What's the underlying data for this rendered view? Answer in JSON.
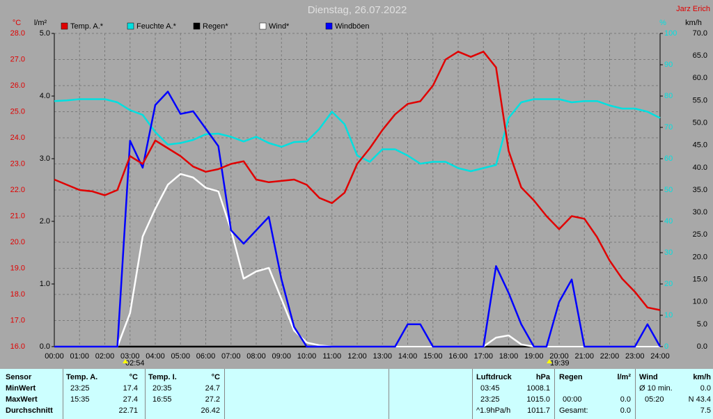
{
  "chart_data": {
    "type": "line",
    "title": "Dienstag, 26.07.2022",
    "author": "Jarz Erich",
    "ylabel": "°C",
    "y3label": "l/m²",
    "y2label": "%",
    "y4label": "km/h",
    "x": [
      0,
      0.5,
      1,
      1.5,
      2,
      2.5,
      3,
      3.5,
      4,
      4.5,
      5,
      5.5,
      6,
      6.5,
      7,
      7.5,
      8,
      8.5,
      9,
      9.5,
      10,
      10.5,
      11,
      11.5,
      12,
      12.5,
      13,
      13.5,
      14,
      14.5,
      15,
      15.5,
      16,
      16.5,
      17,
      17.5,
      18,
      18.5,
      19,
      19.5,
      20,
      20.5,
      21,
      21.5,
      22,
      22.5,
      23,
      23.5,
      24
    ],
    "xlim": [
      0,
      24
    ],
    "xticks": [
      {
        "value": 0,
        "label": "00:00"
      },
      {
        "value": 1,
        "label": "01:00"
      },
      {
        "value": 2,
        "label": "02:00"
      },
      {
        "value": 3,
        "label": "03:00"
      },
      {
        "value": 4,
        "label": "04:00"
      },
      {
        "value": 5,
        "label": "05:00"
      },
      {
        "value": 6,
        "label": "06:00"
      },
      {
        "value": 7,
        "label": "07:00"
      },
      {
        "value": 8,
        "label": "08:00"
      },
      {
        "value": 9,
        "label": "09:00"
      },
      {
        "value": 10,
        "label": "10:00"
      },
      {
        "value": 11,
        "label": "11:00"
      },
      {
        "value": 12,
        "label": "12:00"
      },
      {
        "value": 13,
        "label": "13:00"
      },
      {
        "value": 14,
        "label": "14:00"
      },
      {
        "value": 15,
        "label": "15:00"
      },
      {
        "value": 16,
        "label": "16:00"
      },
      {
        "value": 17,
        "label": "17:00"
      },
      {
        "value": 18,
        "label": "18:00"
      },
      {
        "value": 19,
        "label": "19:00"
      },
      {
        "value": 20,
        "label": "20:00"
      },
      {
        "value": 21,
        "label": "21:00"
      },
      {
        "value": 22,
        "label": "22:00"
      },
      {
        "value": 23,
        "label": "23:00"
      },
      {
        "value": 24,
        "label": "24:00"
      }
    ],
    "ylim": [
      16,
      28
    ],
    "yticks": [
      {
        "value": 16,
        "label": "16.0"
      },
      {
        "value": 17,
        "label": "17.0"
      },
      {
        "value": 18,
        "label": "18.0"
      },
      {
        "value": 19,
        "label": "19.0"
      },
      {
        "value": 20,
        "label": "20.0"
      },
      {
        "value": 21,
        "label": "21.0"
      },
      {
        "value": 22,
        "label": "22.0"
      },
      {
        "value": 23,
        "label": "23.0"
      },
      {
        "value": 24,
        "label": "24.0"
      },
      {
        "value": 25,
        "label": "25.0"
      },
      {
        "value": 26,
        "label": "26.0"
      },
      {
        "value": 27,
        "label": "27.0"
      },
      {
        "value": 28,
        "label": "28.0"
      }
    ],
    "y3lim": [
      0,
      5
    ],
    "y3ticks": [
      {
        "value": 0,
        "label": "0.0"
      },
      {
        "value": 1,
        "label": "1.0"
      },
      {
        "value": 2,
        "label": "2.0"
      },
      {
        "value": 3,
        "label": "3.0"
      },
      {
        "value": 4,
        "label": "4.0"
      },
      {
        "value": 5,
        "label": "5.0"
      }
    ],
    "y2lim": [
      0,
      100
    ],
    "y2ticks": [
      0,
      10,
      20,
      30,
      40,
      50,
      60,
      70,
      80,
      90,
      100
    ],
    "y4lim": [
      0,
      70
    ],
    "y4ticks": [
      {
        "value": 0,
        "label": "0.0"
      },
      {
        "value": 5,
        "label": "5.0"
      },
      {
        "value": 10,
        "label": "10.0"
      },
      {
        "value": 15,
        "label": "15.0"
      },
      {
        "value": 20,
        "label": "20.0"
      },
      {
        "value": 25,
        "label": "25.0"
      },
      {
        "value": 30,
        "label": "30.0"
      },
      {
        "value": 35,
        "label": "35.0"
      },
      {
        "value": 40,
        "label": "40.0"
      },
      {
        "value": 45,
        "label": "45.0"
      },
      {
        "value": 50,
        "label": "50.0"
      },
      {
        "value": 55,
        "label": "55.0"
      },
      {
        "value": 60,
        "label": "60.0"
      },
      {
        "value": 65,
        "label": "65.0"
      },
      {
        "value": 70,
        "label": "70.0"
      }
    ],
    "grid": true,
    "sunrise": "02:54",
    "sunset": "19:39",
    "series": [
      {
        "name": "Temp. A.*",
        "color": "#e00000",
        "axis": "y",
        "values": [
          22.4,
          22.2,
          22.0,
          21.95,
          21.8,
          22.0,
          23.3,
          23.0,
          23.9,
          23.6,
          23.3,
          22.9,
          22.7,
          22.8,
          23.0,
          23.1,
          22.4,
          22.3,
          22.35,
          22.4,
          22.2,
          21.7,
          21.5,
          21.9,
          23.0,
          23.6,
          24.3,
          24.9,
          25.3,
          25.4,
          26.0,
          27.0,
          27.3,
          27.1,
          27.3,
          26.7,
          23.5,
          22.1,
          21.6,
          21.0,
          20.5,
          21.0,
          20.9,
          20.2,
          19.3,
          18.6,
          18.1,
          17.5,
          17.4
        ]
      },
      {
        "name": "Feuchte A.*",
        "color": "#00e0e0",
        "axis": "y2",
        "values": [
          78.4,
          78.6,
          79,
          79,
          79,
          78,
          75.5,
          74,
          68.5,
          64.5,
          65,
          66,
          67.8,
          68,
          67,
          65.5,
          67,
          65,
          63.8,
          65.3,
          65.5,
          69.5,
          75,
          71,
          61,
          59,
          63,
          63,
          61,
          58.4,
          59,
          59,
          57,
          56,
          57,
          58,
          73,
          78,
          79,
          79,
          79,
          78,
          78.4,
          78.4,
          77,
          76,
          76,
          75,
          73
        ]
      },
      {
        "name": "Regen*",
        "color": "#000000",
        "axis": "y3",
        "values": [
          0,
          0,
          0,
          0,
          0,
          0,
          0,
          0,
          0,
          0,
          0,
          0,
          0,
          0,
          0,
          0,
          0,
          0,
          0,
          0,
          0,
          0,
          0,
          0,
          0,
          0,
          0,
          0,
          0,
          0,
          0,
          0,
          0,
          0,
          0,
          0,
          0,
          0,
          0,
          0,
          0,
          0,
          0,
          0,
          0,
          0,
          0,
          0,
          0
        ]
      },
      {
        "name": "Wind*",
        "color": "#ffffff",
        "axis": "y4",
        "values": [
          0,
          0,
          0,
          0,
          0,
          0,
          7.5,
          24.6,
          30.8,
          36.2,
          38.6,
          37.8,
          35.5,
          34.7,
          26.1,
          15.2,
          16.8,
          17.6,
          10.6,
          3.6,
          0.9,
          0.3,
          0,
          0,
          0,
          0,
          0,
          0,
          0,
          0,
          0,
          0,
          0,
          0,
          0,
          2,
          2.5,
          0.5,
          0,
          0,
          0,
          0,
          0,
          0,
          0,
          0,
          0,
          0,
          0
        ]
      },
      {
        "name": "Windböen",
        "color": "#0000ff",
        "axis": "y4",
        "values": [
          0,
          0,
          0,
          0,
          0,
          0,
          46,
          40,
          54,
          57,
          52,
          52.6,
          48.7,
          44.8,
          26,
          23,
          26,
          29,
          15,
          4.4,
          0,
          0,
          0,
          0,
          0,
          0,
          0,
          0,
          5,
          5,
          0,
          0,
          0,
          0,
          0,
          18,
          12,
          5,
          0,
          0,
          10,
          15,
          0,
          0,
          0,
          0,
          0,
          5,
          0
        ]
      }
    ]
  },
  "table": {
    "rows": [
      [
        "Sensor",
        "Temp. A.",
        "°C",
        "Temp. I.",
        "°C",
        "Luftdruck",
        "hPa",
        "Regen",
        "l/m²",
        "Wind",
        "km/h"
      ],
      [
        "MinWert",
        "23:25",
        "17.4",
        "20:35",
        "24.7",
        "03:45",
        "1008.1",
        null,
        null,
        "Ø 10 min.",
        "0.0"
      ],
      [
        "MaxWert",
        "15:35",
        "27.4",
        "16:55",
        "27.2",
        "23:25",
        "1015.0",
        "00:00",
        "0.0",
        "05:20",
        "N 43.4"
      ],
      [
        "Durchschnitt",
        null,
        "22.71",
        null,
        "26.42",
        "^1.9hPa/h",
        "1011.7",
        "Gesamt:",
        "0.0",
        null,
        "7.5"
      ]
    ]
  }
}
